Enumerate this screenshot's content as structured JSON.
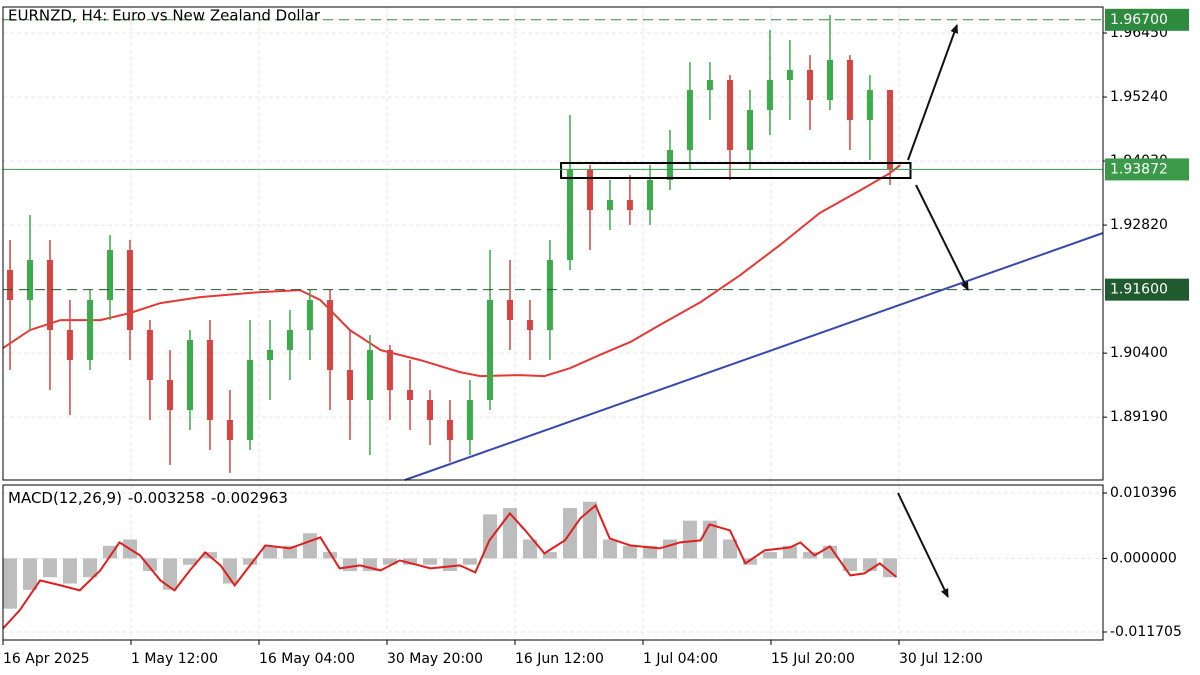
{
  "chart_data": [
    {
      "type": "candlestick",
      "title": "EURNZD, H4:  Euro vs New Zealand Dollar",
      "x": [
        0.055,
        0.211,
        0.367,
        0.523,
        0.68,
        0.836,
        0.992,
        1.148,
        1.305,
        1.461,
        1.617,
        1.773,
        1.93,
        2.086,
        2.242,
        2.398,
        2.555,
        2.711,
        2.867,
        3.023,
        3.18,
        3.336,
        3.492,
        3.648,
        3.805,
        3.961,
        4.117,
        4.273,
        4.43,
        4.586,
        4.742,
        4.898,
        5.055,
        5.211,
        5.367,
        5.523,
        5.68,
        5.836,
        5.992,
        6.148,
        6.305,
        6.461,
        6.617,
        6.773,
        6.93
      ],
      "open": [
        1.91971,
        1.91404,
        1.9216,
        1.90837,
        1.9027,
        1.91404,
        1.92349,
        1.90837,
        1.89892,
        1.89325,
        1.90648,
        1.89136,
        1.88758,
        1.9027,
        1.90459,
        1.90837,
        1.91404,
        1.90081,
        1.89514,
        1.90459,
        1.89703,
        1.89514,
        1.89136,
        1.88758,
        1.89514,
        1.91404,
        1.91026,
        1.90837,
        1.9216,
        1.93861,
        1.93105,
        1.93294,
        1.93105,
        1.93672,
        1.94239,
        1.95373,
        1.95562,
        1.94239,
        1.94995,
        1.95562,
        1.95751,
        1.95184,
        1.9594,
        1.94806,
        1.95373
      ],
      "high": [
        1.92538,
        1.9301,
        1.92538,
        1.91404,
        1.91593,
        1.92632,
        1.92538,
        1.91026,
        1.90459,
        1.90837,
        1.91026,
        1.89703,
        1.91026,
        1.91026,
        1.91215,
        1.91593,
        1.91593,
        1.90837,
        1.90742,
        1.90553,
        1.9027,
        1.89703,
        1.89514,
        1.89892,
        1.92349,
        1.9216,
        1.91404,
        1.92538,
        1.949,
        1.93955,
        1.93672,
        1.93766,
        1.93955,
        1.94617,
        1.95902,
        1.95902,
        1.95656,
        1.95373,
        1.96507,
        1.96318,
        1.96034,
        1.9679,
        1.96034,
        1.95656,
        1.95373
      ],
      "low": [
        1.90081,
        1.90837,
        1.89703,
        1.8923,
        1.90081,
        1.91026,
        1.9027,
        1.89136,
        1.88285,
        1.88947,
        1.88569,
        1.88134,
        1.88569,
        1.89514,
        1.89892,
        1.9027,
        1.89325,
        1.88758,
        1.88474,
        1.89136,
        1.88947,
        1.88663,
        1.88342,
        1.88474,
        1.89325,
        1.90459,
        1.9027,
        1.9027,
        1.91971,
        1.92349,
        1.92727,
        1.92821,
        1.92821,
        1.93483,
        1.93861,
        1.94806,
        1.93672,
        1.93861,
        1.94522,
        1.94806,
        1.94617,
        1.94995,
        1.94239,
        1.9405,
        1.93577
      ],
      "close": [
        1.91404,
        1.9216,
        1.90837,
        1.9027,
        1.91404,
        1.92349,
        1.90837,
        1.89892,
        1.89325,
        1.90648,
        1.89136,
        1.88758,
        1.9027,
        1.90459,
        1.90837,
        1.91404,
        1.90081,
        1.89514,
        1.90459,
        1.89703,
        1.89514,
        1.89136,
        1.88758,
        1.89514,
        1.91404,
        1.91026,
        1.90837,
        1.9216,
        1.93861,
        1.93105,
        1.93294,
        1.93105,
        1.93672,
        1.94239,
        1.95373,
        1.95562,
        1.94239,
        1.94995,
        1.95562,
        1.95751,
        1.95184,
        1.9594,
        1.94806,
        1.95373,
        1.93872
      ],
      "up_color": "#3cab4a",
      "down_color": "#d64541",
      "xlim": [
        0,
        8.594
      ],
      "xticks": [
        {
          "value": 0,
          "label": "16 Apr 2025"
        },
        {
          "value": 1,
          "label": "1 May 12:00"
        },
        {
          "value": 2,
          "label": "16 May 04:00"
        },
        {
          "value": 3,
          "label": "30 May 20:00"
        },
        {
          "value": 4,
          "label": "16 Jun 12:00"
        },
        {
          "value": 5,
          "label": "1 Jul 04:00"
        },
        {
          "value": 6,
          "label": "15 Jul 20:00"
        },
        {
          "value": 7,
          "label": "30 Jul 12:00"
        }
      ],
      "ylim": [
        1.88002,
        1.96942
      ],
      "yticks": [
        {
          "value": 1.8919,
          "label": "1.89190"
        },
        {
          "value": 1.904,
          "label": "1.90400"
        },
        {
          "value": 1.9282,
          "label": "1.92820"
        },
        {
          "value": 1.9403,
          "label": "1.94030"
        },
        {
          "value": 1.9524,
          "label": "1.95240"
        },
        {
          "value": 1.9645,
          "label": "1.96450"
        }
      ],
      "grid": true,
      "lines": [
        {
          "color": "#e53935",
          "x": [
            0,
            0.21,
            0.45,
            0.76,
            0.99,
            1.23,
            1.54,
            2.01,
            2.32,
            2.48,
            2.71,
            2.95,
            3.26,
            3.57,
            3.73,
            4.04,
            4.23,
            4.43,
            4.66,
            4.9,
            5.13,
            5.45,
            5.76,
            6.07,
            6.38,
            6.7,
            6.93,
            7.01
          ],
          "values": [
            1.90495,
            1.90835,
            1.91024,
            1.91024,
            1.91156,
            1.91345,
            1.91459,
            1.91553,
            1.91591,
            1.91402,
            1.90835,
            1.90457,
            1.90268,
            1.90041,
            1.89965,
            1.89984,
            1.89965,
            1.90116,
            1.90362,
            1.90608,
            1.90929,
            1.91364,
            1.91875,
            1.92442,
            1.93047,
            1.93482,
            1.93803,
            1.93954
          ]
        },
        {
          "color": "#3949ab",
          "x": [
            3.14,
            8.594
          ],
          "values": [
            1.88002,
            1.9267
          ]
        }
      ],
      "levels": [
        {
          "value": 1.967,
          "label": "1.96700",
          "style": "dashed",
          "color": "#2e8b3e"
        },
        {
          "value": 1.93872,
          "label": "1.93872",
          "style": "solid",
          "color": "#3a9a4a"
        },
        {
          "value": 1.916,
          "label": "1.91600",
          "style": "dashed",
          "color": "#1f5b2e"
        }
      ],
      "zone": {
        "x": [
          4.36,
          7.09
        ],
        "values": [
          1.93993,
          1.9371
        ]
      }
    },
    {
      "type": "macd",
      "label": "MACD(12,26,9)",
      "macd_value": -0.003258,
      "signal_value": -0.002963,
      "x": [
        0.055,
        0.211,
        0.367,
        0.523,
        0.68,
        0.836,
        0.992,
        1.148,
        1.305,
        1.461,
        1.617,
        1.773,
        1.93,
        2.086,
        2.242,
        2.398,
        2.555,
        2.711,
        2.867,
        3.023,
        3.18,
        3.336,
        3.492,
        3.648,
        3.805,
        3.961,
        4.117,
        4.273,
        4.43,
        4.586,
        4.742,
        4.898,
        5.055,
        5.211,
        5.367,
        5.523,
        5.68,
        5.836,
        5.992,
        6.148,
        6.305,
        6.461,
        6.617,
        6.773,
        6.93
      ],
      "values": [
        -0.008,
        -0.005,
        -0.003,
        -0.004,
        -0.003,
        0.002,
        0.003,
        -0.002,
        -0.005,
        -0.001,
        0.001,
        -0.004,
        -0.001,
        0.002,
        0.002,
        0.004,
        0.001,
        -0.002,
        -0.002,
        -0.001,
        -0.001,
        -0.001,
        -0.002,
        -0.001,
        0.007,
        0.008,
        0.003,
        0.001,
        0.008,
        0.009,
        0.003,
        0.002,
        0.002,
        0.003,
        0.006,
        0.006,
        0.003,
        -0.001,
        0.001,
        0.002,
        0.001,
        0.002,
        -0.002,
        -0.002,
        -0.003
      ],
      "color": "#bdbdbd",
      "signal": {
        "color": "#e01e1e",
        "x": [
          0,
          0.13,
          0.29,
          0.45,
          0.6,
          0.76,
          0.91,
          1.07,
          1.23,
          1.34,
          1.46,
          1.58,
          1.7,
          1.81,
          1.93,
          2.05,
          2.24,
          2.48,
          2.63,
          2.79,
          2.95,
          3.1,
          3.34,
          3.57,
          3.69,
          3.8,
          3.96,
          4.08,
          4.23,
          4.39,
          4.51,
          4.63,
          4.74,
          4.9,
          5.13,
          5.29,
          5.45,
          5.52,
          5.68,
          5.8,
          5.95,
          6.15,
          6.23,
          6.34,
          6.46,
          6.62,
          6.73,
          6.85,
          6.98
        ],
        "values": [
          -0.01113,
          -0.00827,
          -0.0035,
          -0.00429,
          -0.00509,
          -0.00191,
          0.00254,
          0.00048,
          -0.0035,
          -0.00509,
          -0.00191,
          0.00095,
          -0.00111,
          -0.00429,
          -0.00111,
          0.00207,
          0.00159,
          0.00334,
          -0.00159,
          -0.00111,
          -0.00191,
          -0.00032,
          -0.00159,
          -0.00111,
          -0.00223,
          0.00286,
          0.00716,
          0.00445,
          0.0008,
          0.00286,
          0.00636,
          0.00843,
          0.00318,
          0.00207,
          0.00159,
          0.00254,
          0.00286,
          0.00541,
          0.00445,
          -0.0008,
          0.00127,
          0.00175,
          0.00254,
          0.00048,
          0.00191,
          -0.0027,
          -0.00239,
          -0.0008,
          -0.00296
        ]
      },
      "xlim": [
        0,
        8.594
      ],
      "ylim": [
        -0.012977,
        0.011668
      ],
      "yticks": [
        {
          "value": -0.011705,
          "label": "-0.011705"
        },
        {
          "value": 0,
          "label": "0.000000"
        },
        0.010396
      ],
      "grid": true
    }
  ]
}
